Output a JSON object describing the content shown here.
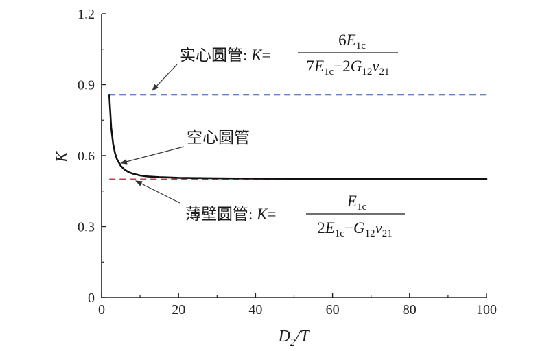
{
  "chart_data": {
    "type": "line",
    "xlabel": "",
    "ylabel": "",
    "xlim": [
      0,
      100
    ],
    "ylim": [
      0,
      1.2
    ],
    "x_ticks": [
      0,
      20,
      40,
      60,
      80,
      100
    ],
    "y_ticks": [
      0,
      0.3,
      0.6,
      0.9,
      1.2
    ],
    "x_tick_labels": [
      "0",
      "20",
      "40",
      "60",
      "80",
      "100"
    ],
    "y_tick_labels": [
      "0",
      "0.3",
      "0.6",
      "0.9",
      "1.2"
    ],
    "grid": false,
    "axis_labels": {
      "x_main": "D",
      "x_sub": "2",
      "x_tail": "/T",
      "y_main": "K"
    },
    "series": [
      {
        "style": "solid",
        "color": "#111111",
        "x": [
          2,
          2.5,
          3,
          3.5,
          4,
          5,
          6,
          7,
          8,
          10,
          12,
          15,
          20,
          30,
          40,
          60,
          80,
          100
        ],
        "y": [
          0.857,
          0.72,
          0.65,
          0.61,
          0.585,
          0.556,
          0.54,
          0.53,
          0.524,
          0.516,
          0.512,
          0.509,
          0.506,
          0.504,
          0.503,
          0.502,
          0.5015,
          0.501
        ]
      },
      {
        "style": "dashed",
        "color": "#2e5aa8",
        "x": [
          2,
          100
        ],
        "y": [
          0.857,
          0.857
        ]
      },
      {
        "style": "dashed",
        "color": "#d03a4a",
        "x": [
          2,
          100
        ],
        "y": [
          0.5,
          0.5
        ]
      }
    ],
    "annotations": {
      "solid": {
        "label": "实心圆管",
        "colon": ":",
        "K": "K",
        "eq": "=",
        "num_coef": "6",
        "E": "E",
        "E_sub": "1c",
        "den_coef1": "7",
        "minus": "−",
        "den_coef2": "2",
        "G": "G",
        "G_sub": "12",
        "nu": "v",
        "nu_sub": "21"
      },
      "hollow": {
        "label": "空心圆管"
      },
      "thin": {
        "label": "薄壁圆管",
        "colon": ":",
        "K": "K",
        "eq": "=",
        "E": "E",
        "E_sub": "1c",
        "den_coef1": "2",
        "minus": "−",
        "G": "G",
        "G_sub": "12",
        "nu": "v",
        "nu_sub": "21"
      }
    }
  }
}
